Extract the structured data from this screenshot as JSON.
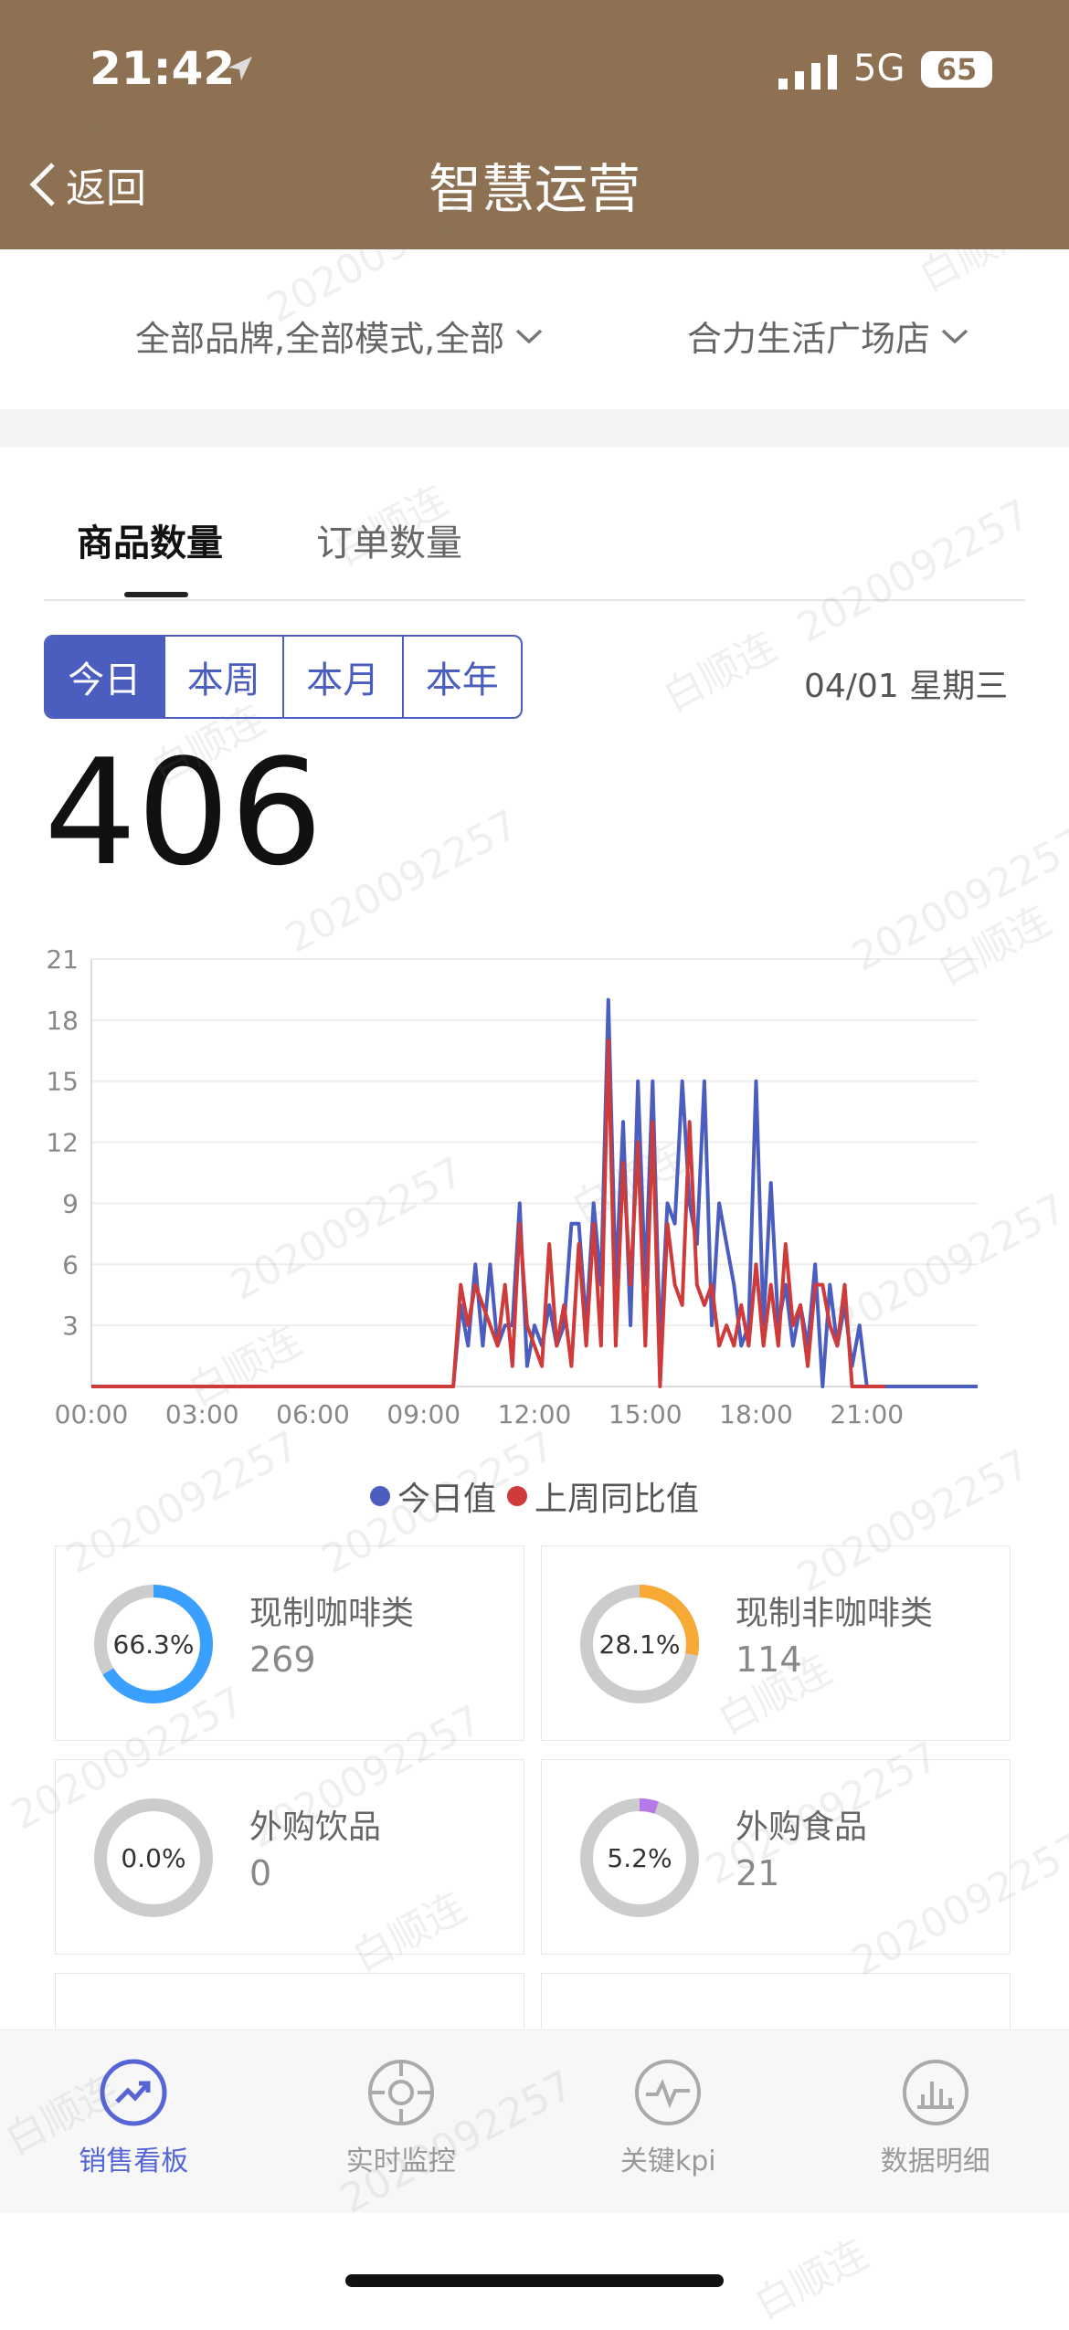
{
  "status": {
    "time": "21:42",
    "network": "5G",
    "battery": "65"
  },
  "header": {
    "back_label": "返回",
    "title": "智慧运营"
  },
  "filters": {
    "brand_mode": "全部品牌,全部模式,全部",
    "store": "合力生活广场店"
  },
  "tabs": [
    {
      "label": "商品数量"
    },
    {
      "label": "订单数量"
    }
  ],
  "period": {
    "options": [
      "今日",
      "本周",
      "本月",
      "本年"
    ],
    "selected": "今日",
    "date": "04/01 星期三"
  },
  "summary": {
    "count": "406"
  },
  "chart_data": {
    "type": "line",
    "x_ticks": [
      "00:00",
      "03:00",
      "06:00",
      "09:00",
      "12:00",
      "15:00",
      "18:00",
      "21:00"
    ],
    "y_ticks": [
      3,
      6,
      9,
      12,
      15,
      18,
      21
    ],
    "ylim": [
      0,
      21
    ],
    "x_range_hours": [
      0,
      24
    ],
    "series": [
      {
        "name": "今日值",
        "color": "#4b5dbf",
        "points": [
          [
            0,
            0
          ],
          [
            9.8,
            0
          ],
          [
            10.0,
            4
          ],
          [
            10.2,
            2
          ],
          [
            10.4,
            6
          ],
          [
            10.6,
            2
          ],
          [
            10.8,
            6
          ],
          [
            11.0,
            2
          ],
          [
            11.2,
            3
          ],
          [
            11.4,
            3
          ],
          [
            11.6,
            9
          ],
          [
            11.8,
            1
          ],
          [
            12.0,
            3
          ],
          [
            12.2,
            2
          ],
          [
            12.4,
            4
          ],
          [
            12.6,
            2
          ],
          [
            12.8,
            3
          ],
          [
            13.0,
            8
          ],
          [
            13.2,
            8
          ],
          [
            13.4,
            3
          ],
          [
            13.6,
            9
          ],
          [
            13.8,
            5
          ],
          [
            14.0,
            19
          ],
          [
            14.2,
            5
          ],
          [
            14.4,
            13
          ],
          [
            14.6,
            3
          ],
          [
            14.8,
            15
          ],
          [
            15.0,
            5
          ],
          [
            15.2,
            15
          ],
          [
            15.4,
            2
          ],
          [
            15.6,
            9
          ],
          [
            15.8,
            8
          ],
          [
            16.0,
            15
          ],
          [
            16.2,
            9
          ],
          [
            16.4,
            7
          ],
          [
            16.6,
            15
          ],
          [
            16.8,
            3
          ],
          [
            17.0,
            9
          ],
          [
            17.2,
            7
          ],
          [
            17.4,
            5
          ],
          [
            17.6,
            2
          ],
          [
            17.8,
            3
          ],
          [
            18.0,
            15
          ],
          [
            18.2,
            3
          ],
          [
            18.4,
            10
          ],
          [
            18.6,
            3
          ],
          [
            18.8,
            5
          ],
          [
            19.0,
            2
          ],
          [
            19.2,
            4
          ],
          [
            19.4,
            2
          ],
          [
            19.6,
            6
          ],
          [
            19.8,
            0
          ],
          [
            20.0,
            5
          ],
          [
            20.2,
            2
          ],
          [
            20.4,
            4
          ],
          [
            20.6,
            1
          ],
          [
            20.8,
            3
          ],
          [
            21.0,
            0
          ],
          [
            21.2,
            0
          ],
          [
            24,
            0
          ]
        ]
      },
      {
        "name": "上周同比值",
        "color": "#cf3a3a",
        "points": [
          [
            0,
            0
          ],
          [
            9.8,
            0
          ],
          [
            10.0,
            5
          ],
          [
            10.2,
            3
          ],
          [
            10.4,
            5
          ],
          [
            10.6,
            4
          ],
          [
            10.8,
            3
          ],
          [
            11.0,
            2
          ],
          [
            11.2,
            5
          ],
          [
            11.4,
            1
          ],
          [
            11.6,
            8
          ],
          [
            11.8,
            3
          ],
          [
            12.0,
            2
          ],
          [
            12.2,
            1
          ],
          [
            12.4,
            7
          ],
          [
            12.6,
            2
          ],
          [
            12.8,
            4
          ],
          [
            13.0,
            1
          ],
          [
            13.2,
            7
          ],
          [
            13.4,
            2
          ],
          [
            13.6,
            8
          ],
          [
            13.8,
            2
          ],
          [
            14.0,
            17
          ],
          [
            14.2,
            2
          ],
          [
            14.4,
            11
          ],
          [
            14.6,
            5
          ],
          [
            14.8,
            12
          ],
          [
            15.0,
            2
          ],
          [
            15.2,
            13
          ],
          [
            15.4,
            0
          ],
          [
            15.6,
            8
          ],
          [
            15.8,
            5
          ],
          [
            16.0,
            4
          ],
          [
            16.2,
            13
          ],
          [
            16.4,
            5
          ],
          [
            16.6,
            4
          ],
          [
            16.8,
            5
          ],
          [
            17.0,
            2
          ],
          [
            17.2,
            3
          ],
          [
            17.4,
            2
          ],
          [
            17.6,
            4
          ],
          [
            17.8,
            2
          ],
          [
            18.0,
            6
          ],
          [
            18.2,
            2
          ],
          [
            18.4,
            5
          ],
          [
            18.6,
            2
          ],
          [
            18.8,
            7
          ],
          [
            19.0,
            3
          ],
          [
            19.2,
            4
          ],
          [
            19.4,
            1
          ],
          [
            19.6,
            5
          ],
          [
            19.8,
            5
          ],
          [
            20.0,
            3
          ],
          [
            20.2,
            2
          ],
          [
            20.4,
            5
          ],
          [
            20.6,
            0
          ],
          [
            20.8,
            0
          ],
          [
            21.5,
            0
          ]
        ]
      }
    ]
  },
  "categories": [
    {
      "name": "现制咖啡类",
      "value": "269",
      "percent_label": "66.3%",
      "fraction": 0.663,
      "color": "#3aa0ff"
    },
    {
      "name": "现制非咖啡类",
      "value": "114",
      "percent_label": "28.1%",
      "fraction": 0.281,
      "color": "#f6a935"
    },
    {
      "name": "外购饮品",
      "value": "0",
      "percent_label": "0.0%",
      "fraction": 0.0,
      "color": "#cccccc"
    },
    {
      "name": "外购食品",
      "value": "21",
      "percent_label": "5.2%",
      "fraction": 0.052,
      "color": "#b57ae8"
    }
  ],
  "nav": [
    {
      "label": "销售看板",
      "icon": "trend-up-icon",
      "active": true
    },
    {
      "label": "实时监控",
      "icon": "crosshair-icon",
      "active": false
    },
    {
      "label": "关键kpi",
      "icon": "pulse-icon",
      "active": false
    },
    {
      "label": "数据明细",
      "icon": "bar-chart-icon",
      "active": false
    }
  ],
  "watermark": {
    "name": "白顺连",
    "id": "2020092257"
  }
}
